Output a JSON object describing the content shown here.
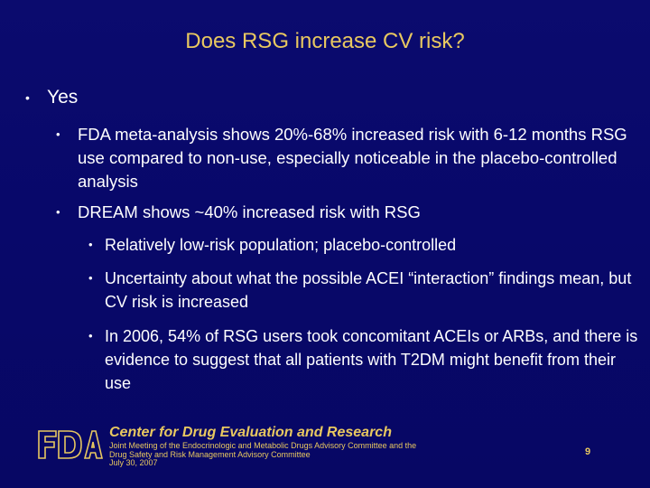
{
  "slide": {
    "title": "Does RSG increase CV risk?",
    "bullets": [
      {
        "text": "Yes",
        "children": [
          {
            "text": "FDA meta-analysis shows 20%-68% increased risk with 6-12 months RSG use compared to non-use, especially noticeable in the placebo-controlled analysis"
          },
          {
            "text": "DREAM shows ~40% increased risk with RSG",
            "children": [
              {
                "text": "Relatively low-risk population; placebo-controlled"
              },
              {
                "text": "Uncertainty about what the possible ACEI “interaction” findings mean, but CV risk is increased"
              },
              {
                "text": "In 2006, 54% of RSG users took concomitant ACEIs or ARBs, and there is evidence to suggest that all patients with T2DM might benefit from their use"
              }
            ]
          }
        ]
      }
    ]
  },
  "footer": {
    "logo_text": "FDA",
    "org": "Center for Drug Evaluation and Research",
    "meeting_lines": [
      "Joint Meeting of the Endocrinologic and Metabolic Drugs Advisory Committee and the",
      "Drug Safety and Risk Management Advisory Committee",
      "July 30, 2007"
    ],
    "page_number": "9"
  },
  "colors": {
    "background": "#0b0b6e",
    "accent": "#e8c860",
    "text": "#ffffff"
  }
}
